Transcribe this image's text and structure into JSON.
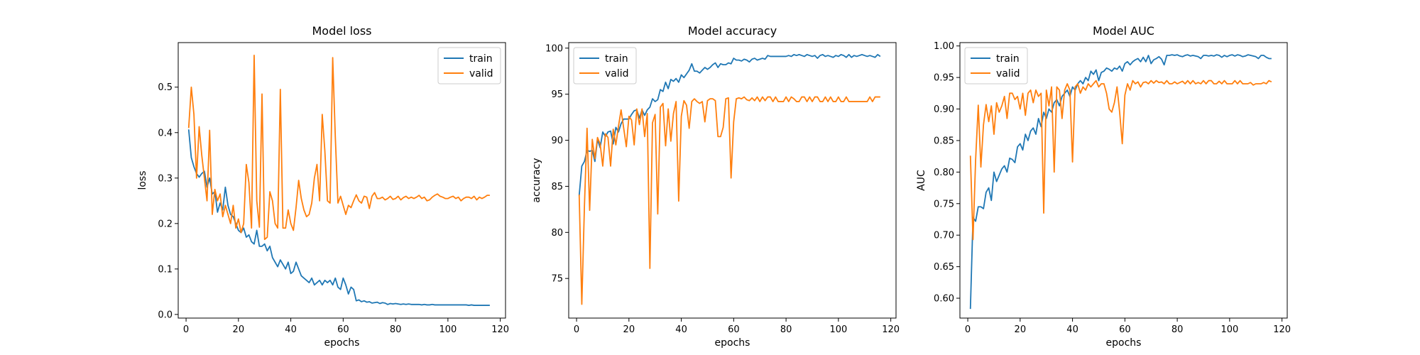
{
  "figure": {
    "colors": {
      "train": "#1f77b4",
      "valid": "#ff7f0e",
      "frame": "#000000",
      "legend_border": "#cccccc"
    }
  },
  "chart_data": [
    {
      "type": "line",
      "title": "Model loss",
      "xlabel": "epochs",
      "ylabel": "loss",
      "xlim": [
        -3,
        122
      ],
      "ylim": [
        -0.008,
        0.598
      ],
      "xticks": [
        0,
        20,
        40,
        60,
        80,
        100,
        120
      ],
      "yticks": [
        0.0,
        0.1,
        0.2,
        0.3,
        0.4,
        0.5
      ],
      "ytick_labels": [
        "0.0",
        "0.1",
        "0.2",
        "0.3",
        "0.4",
        "0.5"
      ],
      "legend": "top-right",
      "grid": false,
      "x": [
        1,
        2,
        3,
        4,
        5,
        6,
        7,
        8,
        9,
        10,
        11,
        12,
        13,
        14,
        15,
        16,
        17,
        18,
        19,
        20,
        21,
        22,
        23,
        24,
        25,
        26,
        27,
        28,
        29,
        30,
        31,
        32,
        33,
        34,
        35,
        36,
        37,
        38,
        39,
        40,
        41,
        42,
        43,
        44,
        45,
        46,
        47,
        48,
        49,
        50,
        51,
        52,
        53,
        54,
        55,
        56,
        57,
        58,
        59,
        60,
        61,
        62,
        63,
        64,
        65,
        66,
        67,
        68,
        69,
        70,
        71,
        72,
        73,
        74,
        75,
        76,
        77,
        78,
        79,
        80,
        81,
        82,
        83,
        84,
        85,
        86,
        87,
        88,
        89,
        90,
        91,
        92,
        93,
        94,
        95,
        96,
        97,
        98,
        99,
        100,
        101,
        102,
        103,
        104,
        105,
        106,
        107,
        108,
        109,
        110,
        111,
        112,
        113,
        114,
        115,
        116
      ],
      "series": [
        {
          "name": "train",
          "values": [
            0.407,
            0.345,
            0.325,
            0.31,
            0.302,
            0.31,
            0.315,
            0.28,
            0.3,
            0.265,
            0.27,
            0.225,
            0.245,
            0.23,
            0.28,
            0.24,
            0.22,
            0.215,
            0.2,
            0.185,
            0.18,
            0.19,
            0.17,
            0.175,
            0.16,
            0.155,
            0.185,
            0.15,
            0.15,
            0.155,
            0.14,
            0.15,
            0.125,
            0.115,
            0.105,
            0.12,
            0.11,
            0.1,
            0.115,
            0.09,
            0.095,
            0.115,
            0.1,
            0.085,
            0.08,
            0.075,
            0.07,
            0.08,
            0.065,
            0.07,
            0.075,
            0.065,
            0.075,
            0.07,
            0.075,
            0.065,
            0.08,
            0.06,
            0.055,
            0.08,
            0.065,
            0.045,
            0.06,
            0.055,
            0.03,
            0.032,
            0.028,
            0.03,
            0.027,
            0.028,
            0.025,
            0.026,
            0.027,
            0.024,
            0.026,
            0.025,
            0.022,
            0.024,
            0.023,
            0.024,
            0.023,
            0.022,
            0.023,
            0.022,
            0.023,
            0.022,
            0.022,
            0.022,
            0.022,
            0.021,
            0.022,
            0.021,
            0.021,
            0.022,
            0.021,
            0.021,
            0.021,
            0.021,
            0.021,
            0.021,
            0.021,
            0.021,
            0.021,
            0.021,
            0.021,
            0.021,
            0.021,
            0.02,
            0.021,
            0.02,
            0.02,
            0.02,
            0.02,
            0.02,
            0.02,
            0.02
          ]
        },
        {
          "name": "valid",
          "values": [
            0.41,
            0.5,
            0.44,
            0.3,
            0.413,
            0.35,
            0.3,
            0.25,
            0.405,
            0.22,
            0.275,
            0.25,
            0.265,
            0.215,
            0.24,
            0.22,
            0.2,
            0.24,
            0.19,
            0.21,
            0.18,
            0.2,
            0.33,
            0.29,
            0.19,
            0.57,
            0.25,
            0.192,
            0.485,
            0.165,
            0.17,
            0.27,
            0.25,
            0.2,
            0.19,
            0.495,
            0.19,
            0.19,
            0.23,
            0.2,
            0.185,
            0.235,
            0.295,
            0.255,
            0.23,
            0.215,
            0.22,
            0.245,
            0.3,
            0.33,
            0.25,
            0.44,
            0.36,
            0.25,
            0.245,
            0.565,
            0.39,
            0.245,
            0.26,
            0.24,
            0.22,
            0.24,
            0.235,
            0.25,
            0.263,
            0.25,
            0.245,
            0.26,
            0.258,
            0.233,
            0.26,
            0.268,
            0.255,
            0.255,
            0.258,
            0.252,
            0.255,
            0.26,
            0.253,
            0.255,
            0.26,
            0.252,
            0.257,
            0.26,
            0.255,
            0.258,
            0.255,
            0.258,
            0.262,
            0.255,
            0.258,
            0.25,
            0.252,
            0.258,
            0.262,
            0.265,
            0.26,
            0.258,
            0.255,
            0.255,
            0.258,
            0.26,
            0.255,
            0.258,
            0.25,
            0.255,
            0.258,
            0.258,
            0.255,
            0.26,
            0.252,
            0.258,
            0.255,
            0.258,
            0.262,
            0.262
          ]
        }
      ]
    },
    {
      "type": "line",
      "title": "Model accuracy",
      "xlabel": "epochs",
      "ylabel": "accuracy",
      "xlim": [
        -3,
        122
      ],
      "ylim": [
        70.7,
        100.6
      ],
      "xticks": [
        0,
        20,
        40,
        60,
        80,
        100,
        120
      ],
      "yticks": [
        75,
        80,
        85,
        90,
        95,
        100
      ],
      "ytick_labels": [
        "75",
        "80",
        "85",
        "90",
        "95",
        "100"
      ],
      "legend": "top-left",
      "grid": false,
      "x": [
        1,
        2,
        3,
        4,
        5,
        6,
        7,
        8,
        9,
        10,
        11,
        12,
        13,
        14,
        15,
        16,
        17,
        18,
        19,
        20,
        21,
        22,
        23,
        24,
        25,
        26,
        27,
        28,
        29,
        30,
        31,
        32,
        33,
        34,
        35,
        36,
        37,
        38,
        39,
        40,
        41,
        42,
        43,
        44,
        45,
        46,
        47,
        48,
        49,
        50,
        51,
        52,
        53,
        54,
        55,
        56,
        57,
        58,
        59,
        60,
        61,
        62,
        63,
        64,
        65,
        66,
        67,
        68,
        69,
        70,
        71,
        72,
        73,
        74,
        75,
        76,
        77,
        78,
        79,
        80,
        81,
        82,
        83,
        84,
        85,
        86,
        87,
        88,
        89,
        90,
        91,
        92,
        93,
        94,
        95,
        96,
        97,
        98,
        99,
        100,
        101,
        102,
        103,
        104,
        105,
        106,
        107,
        108,
        109,
        110,
        111,
        112,
        113,
        114,
        115,
        116
      ],
      "series": [
        {
          "name": "train",
          "values": [
            84.0,
            87.2,
            87.7,
            88.9,
            88.8,
            88.9,
            87.7,
            90.1,
            89.2,
            90.9,
            90.4,
            90.9,
            91.0,
            89.6,
            91.4,
            90.9,
            91.8,
            92.3,
            92.3,
            92.3,
            92.8,
            93.2,
            93.3,
            92.4,
            93.3,
            92.7,
            93.3,
            93.6,
            94.5,
            94.2,
            94.4,
            95.5,
            95.3,
            96.3,
            95.6,
            96.6,
            96.4,
            96.7,
            96.3,
            97.1,
            96.8,
            97.2,
            97.6,
            98.3,
            97.5,
            97.5,
            97.3,
            97.6,
            97.9,
            97.7,
            97.9,
            98.2,
            98.4,
            97.9,
            98.3,
            98.2,
            98.2,
            98.4,
            98.3,
            98.9,
            98.7,
            98.7,
            98.6,
            98.8,
            98.7,
            98.5,
            98.8,
            98.9,
            98.7,
            98.8,
            98.9,
            98.8,
            99.2,
            99.1,
            99.1,
            99.1,
            99.1,
            99.1,
            99.1,
            99.1,
            99.2,
            99.1,
            99.3,
            99.2,
            99.3,
            99.2,
            99.1,
            99.3,
            99.2,
            99.1,
            99.2,
            98.9,
            99.2,
            99.3,
            99.1,
            99.2,
            99.1,
            99.0,
            99.2,
            99.1,
            99.3,
            99.2,
            99.0,
            99.3,
            99.0,
            99.2,
            99.1,
            99.2,
            99.3,
            99.2,
            99.1,
            99.2,
            99.1,
            99.0,
            99.3,
            99.1
          ]
        },
        {
          "name": "valid",
          "values": [
            84.1,
            72.2,
            82.8,
            91.3,
            82.4,
            90.1,
            88.0,
            90.3,
            89.6,
            87.2,
            90.7,
            90.3,
            87.2,
            91.2,
            89.5,
            91.5,
            93.3,
            91.3,
            89.3,
            92.6,
            92.2,
            89.5,
            93.4,
            91.7,
            93.4,
            90.4,
            92.9,
            76.1,
            91.9,
            92.8,
            82.0,
            93.6,
            94.0,
            89.4,
            93.4,
            89.9,
            92.9,
            94.2,
            83.4,
            92.6,
            94.3,
            93.8,
            91.3,
            94.2,
            94.5,
            94.2,
            94.0,
            94.2,
            92.0,
            94.3,
            94.5,
            94.5,
            94.3,
            90.4,
            90.4,
            91.4,
            94.5,
            94.6,
            85.9,
            92.0,
            94.5,
            94.6,
            94.5,
            94.7,
            94.4,
            94.3,
            94.6,
            94.3,
            94.7,
            94.2,
            94.7,
            94.3,
            94.7,
            94.7,
            94.2,
            94.7,
            94.2,
            94.2,
            94.2,
            94.7,
            94.2,
            94.7,
            94.5,
            94.2,
            94.2,
            94.7,
            94.7,
            94.2,
            94.7,
            94.2,
            94.7,
            94.7,
            94.2,
            94.2,
            94.7,
            94.2,
            94.7,
            94.2,
            94.2,
            94.7,
            94.2,
            94.2,
            94.7,
            94.2,
            94.2,
            94.2,
            94.2,
            94.2,
            94.2,
            94.2,
            94.2,
            94.7,
            94.2,
            94.7,
            94.7,
            94.7
          ]
        }
      ]
    },
    {
      "type": "line",
      "title": "Model AUC",
      "xlabel": "epochs",
      "ylabel": "AUC",
      "xlim": [
        -3,
        122
      ],
      "ylim": [
        0.5685,
        1.0053
      ],
      "xticks": [
        0,
        20,
        40,
        60,
        80,
        100,
        120
      ],
      "yticks": [
        0.6,
        0.65,
        0.7,
        0.75,
        0.8,
        0.85,
        0.9,
        0.95,
        1.0
      ],
      "ytick_labels": [
        "0.60",
        "0.65",
        "0.70",
        "0.75",
        "0.80",
        "0.85",
        "0.90",
        "0.95",
        "1.00"
      ],
      "legend": "top-left",
      "grid": false,
      "x": [
        1,
        2,
        3,
        4,
        5,
        6,
        7,
        8,
        9,
        10,
        11,
        12,
        13,
        14,
        15,
        16,
        17,
        18,
        19,
        20,
        21,
        22,
        23,
        24,
        25,
        26,
        27,
        28,
        29,
        30,
        31,
        32,
        33,
        34,
        35,
        36,
        37,
        38,
        39,
        40,
        41,
        42,
        43,
        44,
        45,
        46,
        47,
        48,
        49,
        50,
        51,
        52,
        53,
        54,
        55,
        56,
        57,
        58,
        59,
        60,
        61,
        62,
        63,
        64,
        65,
        66,
        67,
        68,
        69,
        70,
        71,
        72,
        73,
        74,
        75,
        76,
        77,
        78,
        79,
        80,
        81,
        82,
        83,
        84,
        85,
        86,
        87,
        88,
        89,
        90,
        91,
        92,
        93,
        94,
        95,
        96,
        97,
        98,
        99,
        100,
        101,
        102,
        103,
        104,
        105,
        106,
        107,
        108,
        109,
        110,
        111,
        112,
        113,
        114,
        115,
        116
      ],
      "series": [
        {
          "name": "train",
          "values": [
            0.583,
            0.728,
            0.722,
            0.745,
            0.745,
            0.742,
            0.768,
            0.775,
            0.755,
            0.8,
            0.785,
            0.795,
            0.805,
            0.81,
            0.8,
            0.822,
            0.82,
            0.815,
            0.84,
            0.845,
            0.835,
            0.86,
            0.85,
            0.865,
            0.87,
            0.86,
            0.885,
            0.872,
            0.895,
            0.885,
            0.9,
            0.895,
            0.91,
            0.915,
            0.905,
            0.92,
            0.925,
            0.93,
            0.92,
            0.935,
            0.93,
            0.94,
            0.945,
            0.94,
            0.95,
            0.945,
            0.96,
            0.955,
            0.962,
            0.945,
            0.958,
            0.96,
            0.965,
            0.963,
            0.96,
            0.965,
            0.963,
            0.968,
            0.96,
            0.972,
            0.975,
            0.97,
            0.975,
            0.978,
            0.98,
            0.975,
            0.982,
            0.975,
            0.985,
            0.972,
            0.978,
            0.98,
            0.983,
            0.979,
            0.97,
            0.985,
            0.985,
            0.986,
            0.985,
            0.986,
            0.984,
            0.983,
            0.985,
            0.986,
            0.984,
            0.985,
            0.984,
            0.983,
            0.98,
            0.985,
            0.985,
            0.984,
            0.985,
            0.984,
            0.986,
            0.985,
            0.982,
            0.985,
            0.983,
            0.985,
            0.986,
            0.984,
            0.986,
            0.985,
            0.983,
            0.984,
            0.986,
            0.985,
            0.984,
            0.983,
            0.98,
            0.985,
            0.985,
            0.982,
            0.98,
            0.98
          ]
        },
        {
          "name": "valid",
          "values": [
            0.826,
            0.693,
            0.82,
            0.906,
            0.808,
            0.875,
            0.907,
            0.88,
            0.905,
            0.86,
            0.91,
            0.895,
            0.905,
            0.92,
            0.885,
            0.925,
            0.925,
            0.915,
            0.92,
            0.9,
            0.925,
            0.89,
            0.925,
            0.93,
            0.91,
            0.93,
            0.92,
            0.925,
            0.735,
            0.93,
            0.905,
            0.935,
            0.8,
            0.935,
            0.93,
            0.885,
            0.93,
            0.94,
            0.93,
            0.816,
            0.935,
            0.94,
            0.925,
            0.935,
            0.93,
            0.94,
            0.935,
            0.94,
            0.945,
            0.935,
            0.94,
            0.94,
            0.925,
            0.9,
            0.895,
            0.91,
            0.935,
            0.895,
            0.845,
            0.922,
            0.94,
            0.93,
            0.945,
            0.94,
            0.943,
            0.935,
            0.942,
            0.943,
            0.94,
            0.945,
            0.941,
            0.945,
            0.942,
            0.943,
            0.94,
            0.945,
            0.94,
            0.94,
            0.943,
            0.94,
            0.942,
            0.944,
            0.94,
            0.945,
            0.94,
            0.945,
            0.94,
            0.942,
            0.94,
            0.945,
            0.94,
            0.945,
            0.945,
            0.94,
            0.94,
            0.944,
            0.94,
            0.945,
            0.94,
            0.94,
            0.94,
            0.945,
            0.94,
            0.945,
            0.94,
            0.94,
            0.94,
            0.942,
            0.938,
            0.94,
            0.94,
            0.94,
            0.942,
            0.94,
            0.945,
            0.943
          ]
        }
      ]
    }
  ]
}
